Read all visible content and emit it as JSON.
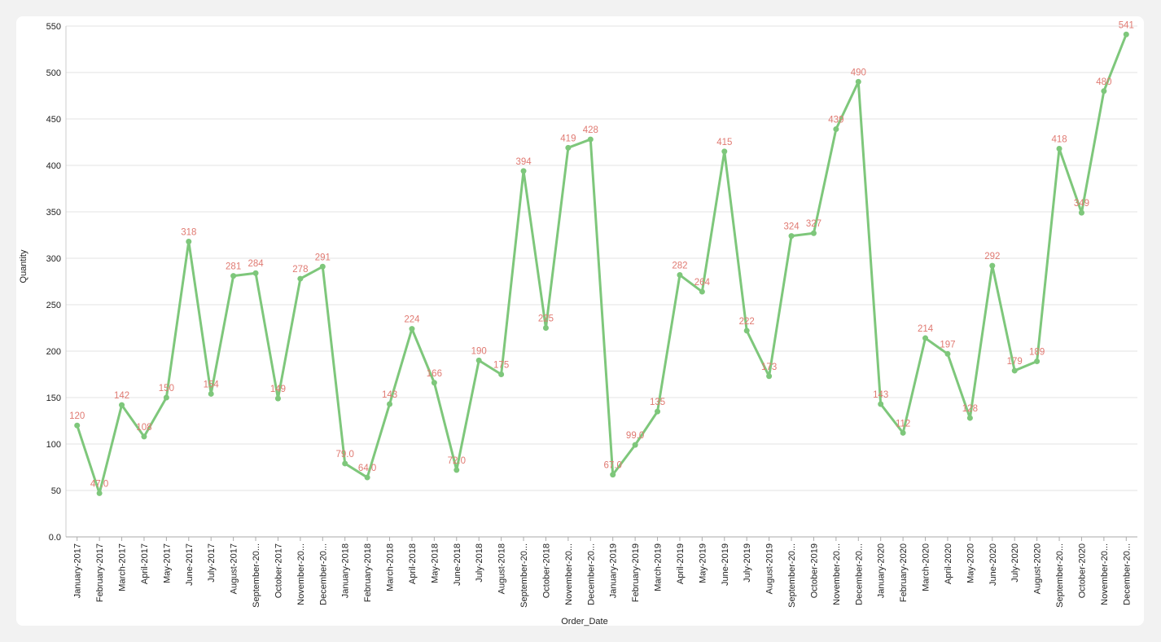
{
  "chart_data": {
    "type": "line",
    "x_label": "Order_Date",
    "y_label": "Quantity",
    "categories": [
      "January-2017",
      "February-2017",
      "March-2017",
      "April-2017",
      "May-2017",
      "June-2017",
      "July-2017",
      "August-2017",
      "September-20...",
      "October-2017",
      "November-20...",
      "December-20...",
      "January-2018",
      "February-2018",
      "March-2018",
      "April-2018",
      "May-2018",
      "June-2018",
      "July-2018",
      "August-2018",
      "September-20...",
      "October-2018",
      "November-20...",
      "December-20...",
      "January-2019",
      "February-2019",
      "March-2019",
      "April-2019",
      "May-2019",
      "June-2019",
      "July-2019",
      "August-2019",
      "September-20...",
      "October-2019",
      "November-20...",
      "December-20...",
      "January-2020",
      "February-2020",
      "March-2020",
      "April-2020",
      "May-2020",
      "June-2020",
      "July-2020",
      "August-2020",
      "September-20...",
      "October-2020",
      "November-20...",
      "December-20..."
    ],
    "values": [
      120,
      47,
      142,
      108,
      150,
      318,
      154,
      281,
      284,
      149,
      278,
      291,
      79,
      64,
      143,
      224,
      166,
      72,
      190,
      175,
      394,
      225,
      419,
      428,
      67,
      99,
      135,
      282,
      264,
      415,
      222,
      173,
      324,
      327,
      439,
      490,
      143,
      112,
      214,
      197,
      128,
      292,
      179,
      189,
      418,
      349,
      480,
      541
    ],
    "value_labels": [
      "120",
      "47.0",
      "142",
      "108",
      "150",
      "318",
      "154",
      "281",
      "284",
      "149",
      "278",
      "291",
      "79.0",
      "64.0",
      "143",
      "224",
      "166",
      "72.0",
      "190",
      "175",
      "394",
      "225",
      "419",
      "428",
      "67.0",
      "99.0",
      "135",
      "282",
      "264",
      "415",
      "222",
      "173",
      "324",
      "327",
      "439",
      "490",
      "143",
      "112",
      "214",
      "197",
      "128",
      "292",
      "179",
      "189",
      "418",
      "349",
      "480",
      "541"
    ],
    "color": "#7ec77b",
    "ylim": [
      0,
      550
    ],
    "yticks": [
      {
        "value": 0,
        "label": "0.0"
      },
      50,
      100,
      150,
      200,
      250,
      300,
      350,
      400,
      450,
      500,
      550
    ],
    "grid": true
  }
}
